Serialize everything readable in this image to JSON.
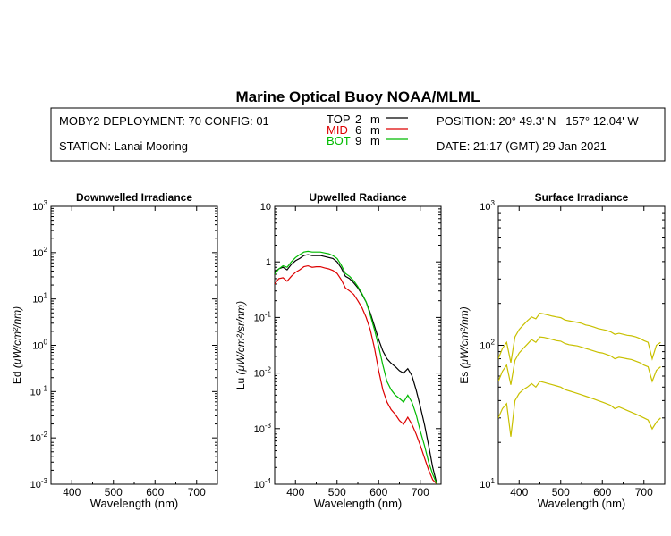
{
  "title": "Marine Optical Buoy NOAA/MLML",
  "header": {
    "deployment": "MOBY2 DEPLOYMENT: 70 CONFIG: 01",
    "station": "STATION: Lanai Mooring",
    "position": "POSITION: 20° 49.3' N   157° 12.04' W",
    "date": "DATE: 21:17 (GMT) 29 Jan 2021",
    "depths": [
      {
        "name": "TOP",
        "depth": "2",
        "unit": "m",
        "color": "#000000"
      },
      {
        "name": "MID",
        "depth": "6",
        "unit": "m",
        "color": "#dd0000"
      },
      {
        "name": "BOT",
        "depth": "9",
        "unit": "m",
        "color": "#00bb00"
      }
    ]
  },
  "colors": {
    "surface": "#c8c000"
  },
  "chart_data": [
    {
      "type": "line",
      "title": "Downwelled Irradiance",
      "xlabel": "Wavelength (nm)",
      "ylabel_main": "Ed",
      "ylabel_unit": "(μW/cm²/nm)",
      "xlim": [
        350,
        750
      ],
      "ylim": [
        0.001,
        1000
      ],
      "yscale": "log",
      "xticks": [
        400,
        500,
        600,
        700
      ],
      "yticks": [
        {
          "base": "10",
          "exp": "-3"
        },
        {
          "base": "10",
          "exp": "-2"
        },
        {
          "base": "10",
          "exp": "-1"
        },
        {
          "base": "10",
          "exp": "0"
        },
        {
          "base": "10",
          "exp": "1"
        },
        {
          "base": "10",
          "exp": "2"
        },
        {
          "base": "10",
          "exp": "3"
        }
      ],
      "series": []
    },
    {
      "type": "line",
      "title": "Upwelled Radiance",
      "xlabel": "Wavelength (nm)",
      "ylabel_main": "Lu",
      "ylabel_unit": "(μW/cm²/sr/nm)",
      "xlim": [
        350,
        750
      ],
      "ylim": [
        0.0001,
        10
      ],
      "yscale": "log",
      "xticks": [
        400,
        500,
        600,
        700
      ],
      "yticks": [
        {
          "base": "10",
          "exp": "-4"
        },
        {
          "base": "10",
          "exp": "-3"
        },
        {
          "base": "10",
          "exp": "-2"
        },
        {
          "base": "10",
          "exp": "-1"
        },
        {
          "base": "1",
          "exp": ""
        },
        {
          "base": "10",
          "exp": ""
        }
      ],
      "series": [
        {
          "name": "TOP",
          "color": "#000000",
          "x": [
            350,
            360,
            370,
            380,
            390,
            400,
            410,
            420,
            430,
            440,
            450,
            460,
            470,
            480,
            490,
            500,
            510,
            520,
            530,
            540,
            550,
            560,
            570,
            580,
            590,
            600,
            610,
            620,
            630,
            640,
            650,
            660,
            670,
            680,
            690,
            700,
            710,
            720,
            730,
            740
          ],
          "y": [
            0.65,
            0.75,
            0.8,
            0.72,
            0.9,
            1.05,
            1.15,
            1.3,
            1.35,
            1.3,
            1.3,
            1.3,
            1.25,
            1.2,
            1.15,
            1.0,
            0.78,
            0.55,
            0.5,
            0.42,
            0.34,
            0.26,
            0.19,
            0.12,
            0.07,
            0.04,
            0.025,
            0.018,
            0.015,
            0.013,
            0.011,
            0.01,
            0.012,
            0.009,
            0.005,
            0.0025,
            0.0012,
            0.0005,
            0.0002,
            0.0001
          ]
        },
        {
          "name": "MID",
          "color": "#dd0000",
          "x": [
            350,
            360,
            370,
            380,
            390,
            400,
            410,
            420,
            430,
            440,
            450,
            460,
            470,
            480,
            490,
            500,
            510,
            520,
            530,
            540,
            550,
            560,
            570,
            580,
            590,
            600,
            610,
            620,
            630,
            640,
            650,
            660,
            670,
            680,
            690,
            700,
            710,
            720,
            730,
            740
          ],
          "y": [
            0.4,
            0.5,
            0.52,
            0.45,
            0.55,
            0.65,
            0.72,
            0.82,
            0.85,
            0.8,
            0.82,
            0.82,
            0.78,
            0.75,
            0.7,
            0.62,
            0.48,
            0.34,
            0.3,
            0.26,
            0.2,
            0.15,
            0.1,
            0.06,
            0.028,
            0.011,
            0.005,
            0.003,
            0.0022,
            0.0018,
            0.0014,
            0.0012,
            0.0016,
            0.0012,
            0.0008,
            0.0005,
            0.0003,
            0.00018,
            0.00012,
            0.0001
          ]
        },
        {
          "name": "BOT",
          "color": "#00bb00",
          "x": [
            350,
            360,
            370,
            380,
            390,
            400,
            410,
            420,
            430,
            440,
            450,
            460,
            470,
            480,
            490,
            500,
            510,
            520,
            530,
            540,
            550,
            560,
            570,
            580,
            590,
            600,
            610,
            620,
            630,
            640,
            650,
            660,
            670,
            680,
            690,
            700,
            710,
            720,
            730,
            740
          ],
          "y": [
            0.6,
            0.75,
            0.85,
            0.8,
            1.0,
            1.2,
            1.35,
            1.5,
            1.55,
            1.5,
            1.5,
            1.5,
            1.45,
            1.4,
            1.3,
            1.15,
            0.88,
            0.62,
            0.55,
            0.46,
            0.36,
            0.27,
            0.19,
            0.11,
            0.06,
            0.03,
            0.014,
            0.007,
            0.005,
            0.004,
            0.0035,
            0.003,
            0.004,
            0.003,
            0.0018,
            0.0009,
            0.0005,
            0.00025,
            0.00015,
            0.0001
          ]
        }
      ]
    },
    {
      "type": "line",
      "title": "Surface Irradiance",
      "xlabel": "Wavelength (nm)",
      "ylabel_main": "Es",
      "ylabel_unit": "(μW/cm²/nm)",
      "xlim": [
        350,
        750
      ],
      "ylim": [
        10,
        1000
      ],
      "yscale": "log",
      "xticks": [
        400,
        500,
        600,
        700
      ],
      "yticks": [
        {
          "base": "10",
          "exp": "1"
        },
        {
          "base": "10",
          "exp": "2"
        },
        {
          "base": "10",
          "exp": "3"
        }
      ],
      "series": [
        {
          "color": "#c8c000",
          "x": [
            350,
            360,
            370,
            380,
            390,
            400,
            410,
            420,
            430,
            440,
            450,
            460,
            470,
            480,
            490,
            500,
            510,
            520,
            530,
            540,
            550,
            560,
            570,
            580,
            590,
            600,
            610,
            620,
            630,
            640,
            650,
            660,
            670,
            680,
            690,
            700,
            710,
            720,
            730,
            740
          ],
          "y": [
            80,
            95,
            105,
            75,
            115,
            130,
            140,
            150,
            160,
            155,
            170,
            168,
            165,
            162,
            160,
            158,
            152,
            150,
            148,
            146,
            144,
            140,
            138,
            135,
            132,
            130,
            128,
            125,
            120,
            122,
            120,
            118,
            117,
            115,
            112,
            108,
            105,
            80,
            100,
            105
          ]
        },
        {
          "color": "#c8c000",
          "x": [
            350,
            360,
            370,
            380,
            390,
            400,
            410,
            420,
            430,
            440,
            450,
            460,
            470,
            480,
            490,
            500,
            510,
            520,
            530,
            540,
            550,
            560,
            570,
            580,
            590,
            600,
            610,
            620,
            630,
            640,
            650,
            660,
            670,
            680,
            690,
            700,
            710,
            720,
            730,
            740
          ],
          "y": [
            55,
            65,
            72,
            52,
            78,
            88,
            95,
            102,
            110,
            105,
            115,
            114,
            112,
            110,
            108,
            107,
            103,
            101,
            100,
            99,
            97,
            95,
            93,
            91,
            89,
            88,
            86,
            84,
            80,
            82,
            81,
            80,
            79,
            77,
            75,
            72,
            70,
            55,
            66,
            70
          ]
        },
        {
          "color": "#c8c000",
          "x": [
            350,
            360,
            370,
            380,
            390,
            400,
            410,
            420,
            430,
            440,
            450,
            460,
            470,
            480,
            490,
            500,
            510,
            520,
            530,
            540,
            550,
            560,
            570,
            580,
            590,
            600,
            610,
            620,
            630,
            640,
            650,
            660,
            670,
            680,
            690,
            700,
            710,
            720,
            730,
            740
          ],
          "y": [
            30,
            35,
            38,
            22,
            40,
            45,
            48,
            50,
            53,
            50,
            55,
            54,
            53,
            52,
            51,
            50,
            48,
            47,
            46,
            45,
            44,
            43,
            42,
            41,
            40,
            39,
            38,
            37,
            35,
            36,
            35,
            34,
            33,
            32,
            31,
            30,
            29,
            25,
            28,
            30
          ]
        }
      ]
    }
  ]
}
